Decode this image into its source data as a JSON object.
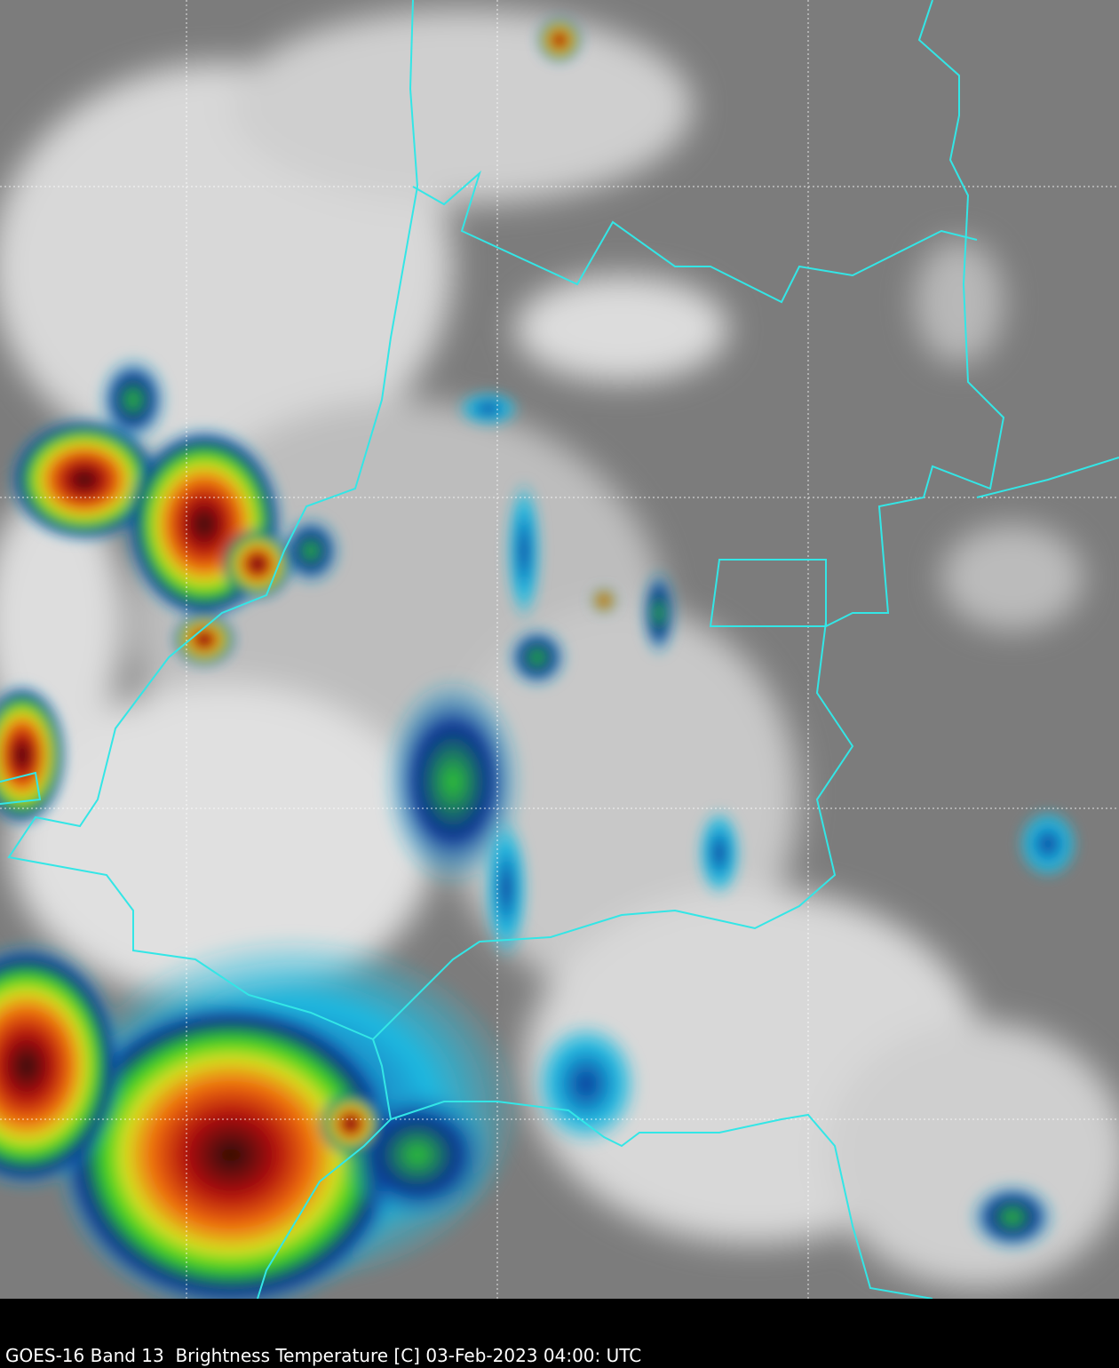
{
  "caption": "GOES-16 Band 13  Brightness Temperature [C] 03-Feb-2023 04:00: UTC",
  "colors": {
    "border": "#33e6e6",
    "grid": "#ffffff",
    "clear_sky": "#7a7a7a",
    "cloud": "#e8e8e8",
    "cold_cyan": "#19b4d8",
    "cold_blue": "#102a8c",
    "cold_green": "#3cdc28",
    "cold_yellow": "#e8e828",
    "cold_red": "#d01a10",
    "cold_darkred": "#3a0808"
  },
  "map": {
    "gridlines": true,
    "colormap": "brightness-temperature-enhanced"
  }
}
